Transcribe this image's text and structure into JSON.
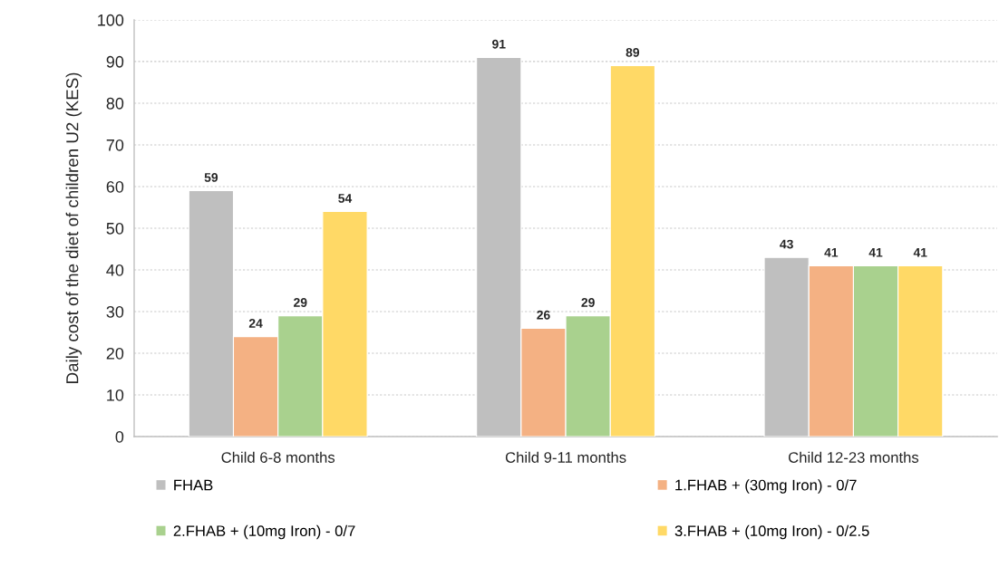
{
  "chart_data": {
    "type": "bar",
    "ylabel": "Daily cost of the diet of children U2 (KES)",
    "categories": [
      "Child 6-8 months",
      "Child 9-11 months",
      "Child 12-23 months"
    ],
    "series": [
      {
        "name": "FHAB",
        "color": "#bfbfbf",
        "values": [
          59,
          91,
          43
        ]
      },
      {
        "name": "1.FHAB + (30mg Iron) - 0/7",
        "color": "#f4b183",
        "values": [
          24,
          26,
          41
        ]
      },
      {
        "name": "2.FHAB + (10mg Iron) - 0/7",
        "color": "#a9d18e",
        "values": [
          29,
          29,
          41
        ]
      },
      {
        "name": "3.FHAB + (10mg Iron) - 0/2.5",
        "color": "#ffd966",
        "values": [
          54,
          89,
          41
        ]
      }
    ],
    "ylim": [
      0,
      100
    ],
    "yticks": [
      0,
      10,
      20,
      30,
      40,
      50,
      60,
      70,
      80,
      90,
      100
    ],
    "grid": "y",
    "legend": "bottom",
    "data_labels": true
  }
}
